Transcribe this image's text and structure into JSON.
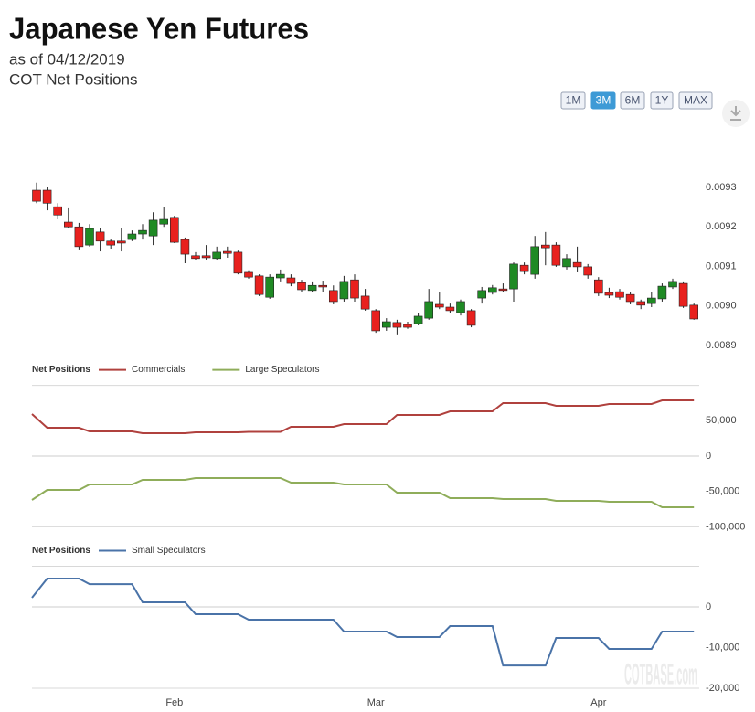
{
  "header": {
    "title": "Japanese Yen Futures",
    "subtitle": "as of 04/12/2019",
    "caption": "COT Net Positions",
    "range_buttons": [
      {
        "label": "1M",
        "active": false
      },
      {
        "label": "3M",
        "active": true
      },
      {
        "label": "6M",
        "active": false
      },
      {
        "label": "1Y",
        "active": false
      },
      {
        "label": "MAX",
        "active": false
      }
    ],
    "watermark": "COTBASE.com"
  },
  "chart_data": [
    {
      "type": "candlestick",
      "up_color": "#1f8a24",
      "down_color": "#e8211e",
      "open": [
        0.009293,
        0.009293,
        0.009251,
        0.009212,
        0.0092,
        0.009154,
        0.009187,
        0.009164,
        0.009164,
        0.009168,
        0.009182,
        0.009177,
        0.009207,
        0.009224,
        0.009168,
        0.009127,
        0.009127,
        0.00912,
        0.009138,
        0.009136,
        0.009085,
        0.009076,
        0.009022,
        0.009071,
        0.009071,
        0.009059,
        0.009039,
        0.009052,
        0.009039,
        0.009018,
        0.009066,
        0.009025,
        0.008988,
        0.008946,
        0.008958,
        0.008953,
        0.008955,
        0.008969,
        0.009004,
        0.008997,
        0.008983,
        0.008988,
        0.00902,
        0.009034,
        0.009043,
        0.009043,
        0.009103,
        0.00908,
        0.009154,
        0.009154,
        0.009099,
        0.00911,
        0.009099,
        0.009066,
        0.009034,
        0.009036,
        0.009029,
        0.009011,
        0.009006,
        0.009018,
        0.009048,
        0.009057,
        0.009002
      ],
      "high": [
        0.009312,
        0.0093,
        0.00926,
        0.009247,
        0.00921,
        0.009207,
        0.009196,
        0.009168,
        0.009196,
        0.009191,
        0.009207,
        0.009237,
        0.009251,
        0.009228,
        0.009173,
        0.009136,
        0.009154,
        0.00915,
        0.00915,
        0.00914,
        0.00909,
        0.00908,
        0.00908,
        0.009092,
        0.00908,
        0.009066,
        0.009062,
        0.009064,
        0.009052,
        0.009076,
        0.00908,
        0.009043,
        0.008992,
        0.008969,
        0.008965,
        0.00896,
        0.008983,
        0.009043,
        0.009034,
        0.009006,
        0.009016,
        0.008992,
        0.009048,
        0.009053,
        0.009057,
        0.00911,
        0.00911,
        0.009177,
        0.009187,
        0.009161,
        0.009131,
        0.00915,
        0.009106,
        0.009073,
        0.009046,
        0.009043,
        0.009034,
        0.009016,
        0.009034,
        0.009057,
        0.009069,
        0.009062,
        0.009006
      ],
      "low": [
        0.00926,
        0.009242,
        0.009219,
        0.009196,
        0.009143,
        0.00915,
        0.009138,
        0.009145,
        0.009138,
        0.009164,
        0.009168,
        0.009154,
        0.0092,
        0.009159,
        0.009108,
        0.009115,
        0.009115,
        0.009115,
        0.009122,
        0.00908,
        0.009069,
        0.009025,
        0.009018,
        0.009062,
        0.00905,
        0.009034,
        0.009034,
        0.009034,
        0.009004,
        0.009011,
        0.009011,
        0.008988,
        0.008932,
        0.008937,
        0.008928,
        0.008942,
        0.008951,
        0.008965,
        0.008992,
        0.008983,
        0.008976,
        0.008946,
        0.009006,
        0.009029,
        0.009034,
        0.009011,
        0.00908,
        0.009069,
        0.009103,
        0.009099,
        0.009092,
        0.009085,
        0.009069,
        0.009025,
        0.00902,
        0.009016,
        0.009004,
        0.008992,
        0.008997,
        0.009011,
        0.009043,
        0.008995,
        0.008965
      ],
      "close": [
        0.009265,
        0.00926,
        0.00923,
        0.0092,
        0.00915,
        0.009196,
        0.009164,
        0.009154,
        0.009159,
        0.009182,
        0.009191,
        0.009217,
        0.009219,
        0.009161,
        0.009131,
        0.00912,
        0.009122,
        0.009136,
        0.009133,
        0.009083,
        0.009073,
        0.009029,
        0.009073,
        0.00908,
        0.009057,
        0.009041,
        0.009052,
        0.009048,
        0.009011,
        0.009062,
        0.00902,
        0.008992,
        0.008937,
        0.00896,
        0.008946,
        0.008946,
        0.008974,
        0.009011,
        0.008997,
        0.008988,
        0.009011,
        0.008951,
        0.009039,
        0.009046,
        0.009039,
        0.009106,
        0.009087,
        0.00915,
        0.009147,
        0.009103,
        0.00912,
        0.009099,
        0.009078,
        0.009032,
        0.009027,
        0.009022,
        0.009011,
        0.009002,
        0.00902,
        0.00905,
        0.009062,
        0.008999,
        0.008967
      ],
      "ylim": [
        0.00888,
        0.00934
      ],
      "yticks": [
        0.0089,
        {
          "value": 0.009,
          "label": "0.0090"
        },
        0.0091,
        0.0092,
        0.0093
      ]
    },
    {
      "type": "line",
      "title": "Net Positions",
      "series": [
        {
          "name": "Commercials",
          "color": "#b0413e",
          "values": [
            59400,
            40000,
            40000,
            40000,
            40000,
            34900,
            34900,
            34900,
            34900,
            34900,
            32300,
            32300,
            32300,
            32300,
            32300,
            33600,
            33600,
            33600,
            33600,
            33600,
            34200,
            34200,
            34200,
            34200,
            41300,
            41300,
            41300,
            41300,
            41300,
            45200,
            45200,
            45200,
            45200,
            45200,
            58100,
            58100,
            58100,
            58100,
            58100,
            63300,
            63300,
            63300,
            63300,
            63300,
            74900,
            74900,
            74900,
            74900,
            74900,
            71100,
            71100,
            71100,
            71100,
            71100,
            73600,
            73600,
            73600,
            73600,
            73600,
            78800,
            78800,
            78800,
            78800
          ]
        },
        {
          "name": "Large Speculators",
          "color": "#8fad5a",
          "values": [
            -62000,
            -47800,
            -47800,
            -47800,
            -47800,
            -40000,
            -40000,
            -40000,
            -40000,
            -40000,
            -33600,
            -33600,
            -33600,
            -33600,
            -33600,
            -31000,
            -31000,
            -31000,
            -31000,
            -31000,
            -31000,
            -31000,
            -31000,
            -31000,
            -37500,
            -37500,
            -37500,
            -37500,
            -37500,
            -40000,
            -40000,
            -40000,
            -40000,
            -40000,
            -51700,
            -51700,
            -51700,
            -51700,
            -51700,
            -59400,
            -59400,
            -59400,
            -59400,
            -59400,
            -60700,
            -60700,
            -60700,
            -60700,
            -60700,
            -63300,
            -63300,
            -63300,
            -63300,
            -63300,
            -64600,
            -64600,
            -64600,
            -64600,
            -64600,
            -72400,
            -72400,
            -72400,
            -72400
          ]
        }
      ],
      "ylim": [
        -100000,
        100000
      ],
      "yticks": [
        {
          "value": -100000,
          "label": "-100,000"
        },
        {
          "value": -50000,
          "label": "-50,000"
        },
        0,
        {
          "value": 50000,
          "label": "50,000"
        }
      ]
    },
    {
      "type": "line",
      "title": "Net Positions",
      "categories": [
        null,
        null,
        null,
        null,
        null,
        null,
        null,
        null,
        null,
        null,
        null,
        null,
        null,
        "Feb",
        null,
        null,
        null,
        null,
        null,
        null,
        null,
        null,
        null,
        null,
        null,
        null,
        null,
        null,
        null,
        null,
        null,
        null,
        "Mar",
        null,
        null,
        null,
        null,
        null,
        null,
        null,
        null,
        null,
        null,
        null,
        null,
        null,
        null,
        null,
        null,
        null,
        null,
        null,
        null,
        "Apr",
        null,
        null,
        null,
        null,
        null,
        null,
        null,
        null,
        null
      ],
      "series": [
        {
          "name": "Small Speculators",
          "color": "#4a73a8",
          "values": [
            2250,
            6970,
            6970,
            6970,
            6970,
            5600,
            5600,
            5600,
            5600,
            5600,
            1120,
            1120,
            1120,
            1120,
            1120,
            -1800,
            -1800,
            -1800,
            -1800,
            -1800,
            -3150,
            -3150,
            -3150,
            -3150,
            -3150,
            -3150,
            -3150,
            -3150,
            -3150,
            -6070,
            -6070,
            -6070,
            -6070,
            -6070,
            -7420,
            -7420,
            -7420,
            -7420,
            -7420,
            -4720,
            -4720,
            -4720,
            -4720,
            -4720,
            -14400,
            -14400,
            -14400,
            -14400,
            -14400,
            -7640,
            -7640,
            -7640,
            -7640,
            -7640,
            -10340,
            -10340,
            -10340,
            -10340,
            -10340,
            -6070,
            -6070,
            -6070,
            -6070
          ]
        }
      ],
      "ylim": [
        -20000,
        10000
      ],
      "yticks": [
        {
          "value": -20000,
          "label": "-20,000"
        },
        {
          "value": -10000,
          "label": "-10,000"
        },
        0
      ]
    }
  ]
}
